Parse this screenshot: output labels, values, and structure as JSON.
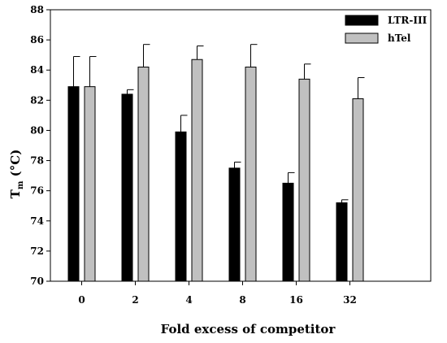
{
  "chart_data": {
    "type": "bar",
    "categories": [
      "0",
      "2",
      "4",
      "8",
      "16",
      "32"
    ],
    "series": [
      {
        "name": "LTR-III",
        "values": [
          82.9,
          82.4,
          79.9,
          77.5,
          76.5,
          75.2
        ],
        "errors": [
          2.0,
          0.3,
          1.1,
          0.4,
          0.7,
          0.2
        ],
        "color": "#000000"
      },
      {
        "name": "hTel",
        "values": [
          82.9,
          84.2,
          84.7,
          84.2,
          83.4,
          82.1
        ],
        "errors": [
          2.0,
          1.5,
          0.9,
          1.5,
          1.0,
          1.4
        ],
        "color": "#c0c0c0"
      }
    ],
    "title": "",
    "xlabel": "Fold excess of competitor",
    "ylabel_main": "T",
    "ylabel_sub": "m",
    "ylabel_unit": " (°C)",
    "ylim": [
      70,
      88
    ],
    "yticks": [
      70,
      72,
      74,
      76,
      78,
      80,
      82,
      84,
      86,
      88
    ],
    "legend_position": "top-right",
    "grid": false
  }
}
